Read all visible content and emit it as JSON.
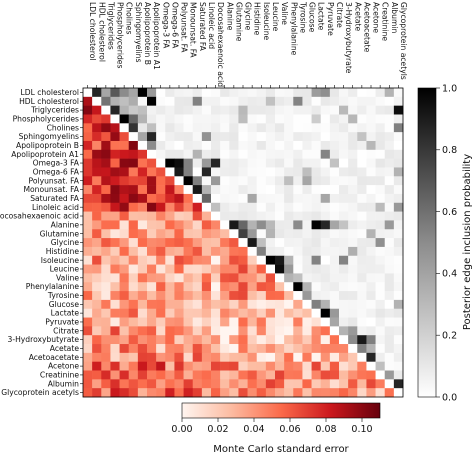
{
  "chart_data": {
    "type": "heatmap",
    "variables": [
      "LDL cholesterol",
      "HDL cholesterol",
      "Triglycerides",
      "Phospholycerides",
      "Cholines",
      "Sphingomyelins",
      "Apolipoprotein B",
      "Apolipoprotein A1",
      "Omega-3 FA",
      "Omega-6 FA",
      "Polyunsat. FA",
      "Monounsat. FA",
      "Saturated FA",
      "Linoleic acid",
      "Docosahexaenoic acid",
      "Alanine",
      "Glutamine",
      "Glycine",
      "Histidine",
      "Isoleucine",
      "Leucine",
      "Valine",
      "Phenylalanine",
      "Tyrosine",
      "Glucose",
      "Lactate",
      "Pyruvate",
      "Citrate",
      "3-Hydroxybutyrate",
      "Acetate",
      "Acetoacetate",
      "Acetone",
      "Creatinine",
      "Albumin",
      "Glycoprotein acetyls"
    ],
    "upper_triangle": {
      "label": "Posterior edge inclusion probability",
      "range": [
        0.0,
        1.0
      ],
      "ticks": [
        0.0,
        0.2,
        0.4,
        0.6,
        0.8,
        1.0
      ],
      "tick_labels": [
        "0.0",
        "0.2",
        "0.4",
        "0.6",
        "0.8",
        "1.0"
      ],
      "colormap": "white-to-black",
      "colorbar_position": "right",
      "strong_edges": [
        [
          0,
          1,
          0.85
        ],
        [
          0,
          2,
          0.35
        ],
        [
          0,
          3,
          0.65
        ],
        [
          0,
          4,
          0.45
        ],
        [
          0,
          5,
          0.35
        ],
        [
          0,
          6,
          1.0
        ],
        [
          0,
          7,
          0.4
        ],
        [
          1,
          2,
          0.55
        ],
        [
          1,
          3,
          0.3
        ],
        [
          1,
          4,
          0.25
        ],
        [
          1,
          7,
          1.0
        ],
        [
          2,
          3,
          0.85
        ],
        [
          2,
          4,
          0.3
        ],
        [
          2,
          6,
          0.25
        ],
        [
          3,
          4,
          1.0
        ],
        [
          3,
          5,
          0.6
        ],
        [
          3,
          6,
          0.3
        ],
        [
          4,
          5,
          0.8
        ],
        [
          4,
          7,
          0.25
        ],
        [
          5,
          6,
          0.35
        ],
        [
          5,
          7,
          0.85
        ],
        [
          6,
          7,
          0.45
        ],
        [
          7,
          12,
          0.3
        ],
        [
          8,
          9,
          1.0
        ],
        [
          8,
          10,
          0.95
        ],
        [
          8,
          11,
          0.5
        ],
        [
          8,
          13,
          0.4
        ],
        [
          8,
          14,
          0.85
        ],
        [
          9,
          10,
          0.9
        ],
        [
          9,
          11,
          0.5
        ],
        [
          9,
          13,
          0.85
        ],
        [
          10,
          11,
          1.0
        ],
        [
          10,
          12,
          0.5
        ],
        [
          10,
          14,
          0.4
        ],
        [
          11,
          12,
          0.9
        ],
        [
          11,
          13,
          0.3
        ],
        [
          12,
          13,
          0.6
        ],
        [
          13,
          14,
          0.25
        ],
        [
          15,
          16,
          0.9
        ],
        [
          15,
          17,
          0.6
        ],
        [
          15,
          18,
          0.3
        ],
        [
          15,
          25,
          1.0
        ],
        [
          15,
          26,
          0.85
        ],
        [
          15,
          27,
          0.35
        ],
        [
          16,
          17,
          0.75
        ],
        [
          16,
          18,
          0.4
        ],
        [
          16,
          20,
          0.3
        ],
        [
          17,
          18,
          0.9
        ],
        [
          17,
          19,
          0.25
        ],
        [
          18,
          19,
          0.5
        ],
        [
          19,
          20,
          1.0
        ],
        [
          19,
          21,
          0.9
        ],
        [
          19,
          22,
          0.3
        ],
        [
          20,
          21,
          0.95
        ],
        [
          20,
          22,
          0.4
        ],
        [
          21,
          22,
          0.3
        ],
        [
          21,
          23,
          0.25
        ],
        [
          22,
          23,
          1.0
        ],
        [
          22,
          24,
          0.3
        ],
        [
          23,
          24,
          0.4
        ],
        [
          24,
          25,
          0.5
        ],
        [
          24,
          26,
          0.3
        ],
        [
          25,
          26,
          1.0
        ],
        [
          25,
          27,
          0.4
        ],
        [
          26,
          27,
          0.35
        ],
        [
          27,
          28,
          0.3
        ],
        [
          27,
          29,
          0.4
        ],
        [
          28,
          29,
          0.45
        ],
        [
          28,
          30,
          0.9
        ],
        [
          28,
          31,
          0.5
        ],
        [
          29,
          30,
          0.5
        ],
        [
          29,
          31,
          0.3
        ],
        [
          30,
          31,
          0.85
        ],
        [
          31,
          32,
          0.25
        ],
        [
          32,
          33,
          0.4
        ],
        [
          33,
          34,
          0.85
        ],
        [
          0,
          33,
          0.3
        ],
        [
          2,
          34,
          0.95
        ],
        [
          4,
          34,
          0.5
        ],
        [
          13,
          34,
          0.4
        ],
        [
          15,
          33,
          0.4
        ],
        [
          24,
          34,
          0.3
        ],
        [
          16,
          31,
          0.3
        ],
        [
          9,
          34,
          0.3
        ]
      ]
    },
    "lower_triangle": {
      "label": "Monte Carlo standard error",
      "range": [
        0.0,
        0.11
      ],
      "ticks": [
        0.0,
        0.02,
        0.04,
        0.06,
        0.08,
        0.1
      ],
      "tick_labels": [
        "0.00",
        "0.02",
        "0.04",
        "0.06",
        "0.08",
        "0.10"
      ],
      "colormap": "white-to-red",
      "colorbar_position": "bottom",
      "pattern": "high within lipid block (rows 0–13), moderate in amino acids, low in mid rows, higher again in bottom rows (Acetone, Albumin, Glycoprotein acetyls)"
    }
  }
}
